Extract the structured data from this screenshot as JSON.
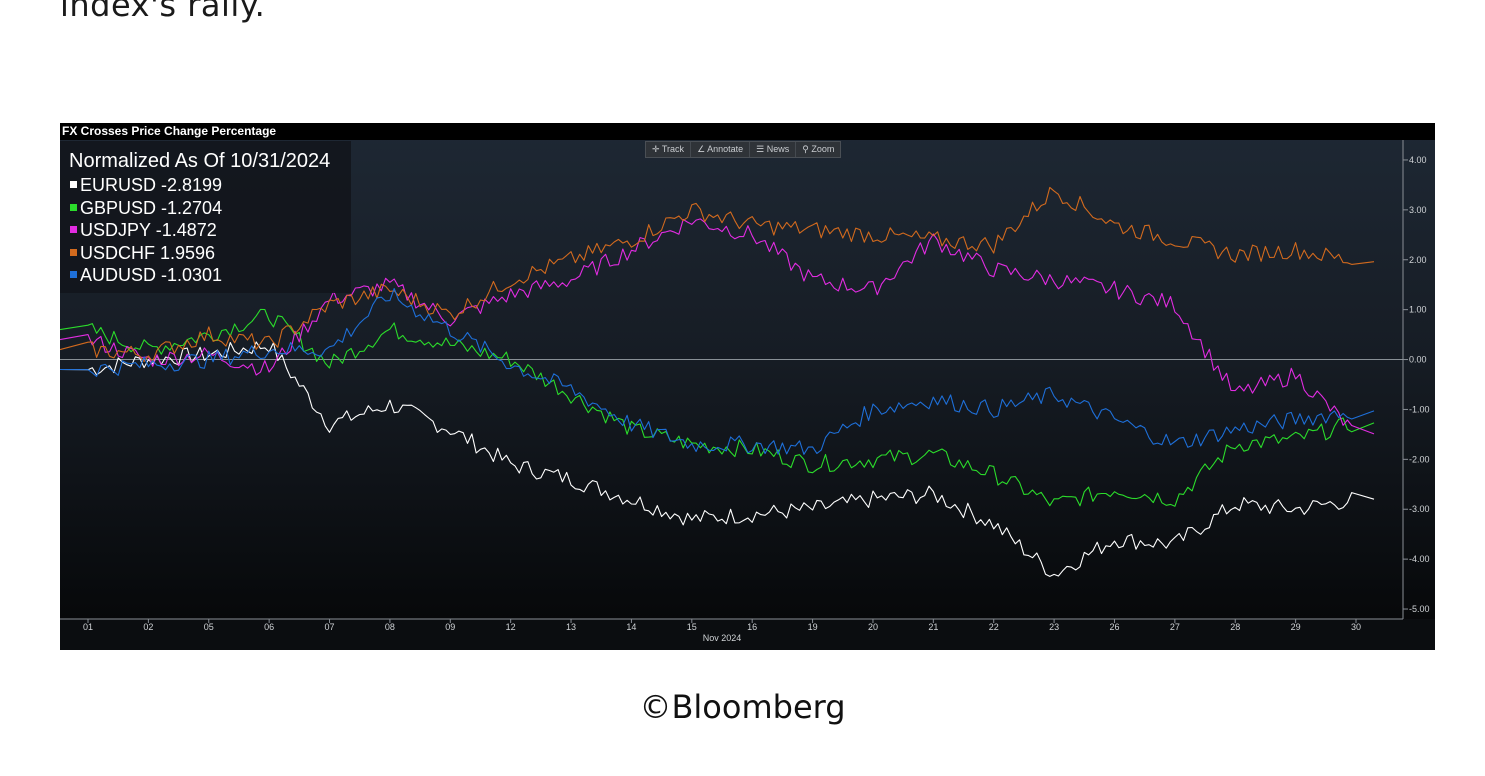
{
  "top_text": "index's rally.",
  "source": "©Bloomberg",
  "chart_data": {
    "type": "line",
    "title": "FX Crosses Price Change Percentage",
    "legend_title": "Normalized As Of 10/31/2024",
    "toolbar": [
      "Track",
      "Annotate",
      "News",
      "Zoom"
    ],
    "x_tick_labels": [
      "01",
      "02",
      "05",
      "06",
      "07",
      "08",
      "09",
      "12",
      "13",
      "14",
      "15",
      "16",
      "19",
      "20",
      "21",
      "22",
      "23",
      "26",
      "27",
      "28",
      "29",
      "30"
    ],
    "x_axis_label": "Nov 2024",
    "y_ticks": [
      4.0,
      3.0,
      2.0,
      1.0,
      0.0,
      -1.0,
      -2.0,
      -3.0,
      -4.0,
      -5.0
    ],
    "y_tick_labels": [
      "4.00",
      "3.00",
      "2.00",
      "1.00",
      "0.00",
      "-1.00",
      "-2.00",
      "-3.00",
      "-4.00",
      "-5.00"
    ],
    "ylim": [
      -5.2,
      4.4
    ],
    "y_axis_side": "right",
    "legend_position": "top-left",
    "series": [
      {
        "name": "EURUSD",
        "last": "-2.8199",
        "color": "#ffffff",
        "values": [
          -0.2,
          0.0,
          0.1,
          0.3,
          -1.3,
          -0.9,
          -1.4,
          -2.1,
          -2.4,
          -2.8,
          -3.2,
          -3.1,
          -3.0,
          -2.8,
          -2.7,
          -3.3,
          -4.3,
          -3.6,
          -3.7,
          -2.9,
          -3.0,
          -2.8
        ]
      },
      {
        "name": "GBPUSD",
        "last": "-1.2704",
        "color": "#2bdc2b",
        "values": [
          0.6,
          0.2,
          0.5,
          0.9,
          -0.1,
          0.6,
          0.3,
          0.0,
          -0.7,
          -1.4,
          -1.7,
          -1.8,
          -2.1,
          -2.0,
          -1.9,
          -2.3,
          -2.9,
          -2.6,
          -2.8,
          -1.7,
          -1.6,
          -1.27
        ]
      },
      {
        "name": "USDJPY",
        "last": "-1.4872",
        "color": "#e22ce2",
        "values": [
          0.4,
          0.0,
          0.1,
          -0.2,
          1.2,
          1.5,
          0.8,
          1.3,
          1.6,
          2.2,
          2.8,
          2.5,
          1.6,
          1.4,
          2.4,
          1.8,
          1.6,
          1.4,
          1.1,
          -0.7,
          -0.3,
          -1.49
        ]
      },
      {
        "name": "USDCHF",
        "last": "1.9596",
        "color": "#d26a1e",
        "values": [
          0.2,
          0.1,
          0.5,
          0.3,
          1.1,
          1.4,
          0.9,
          1.6,
          2.0,
          2.4,
          3.0,
          2.7,
          2.6,
          2.5,
          2.4,
          2.3,
          3.4,
          2.7,
          2.4,
          2.1,
          2.2,
          1.96
        ]
      },
      {
        "name": "AUDUSD",
        "last": "-1.0301",
        "color": "#1e6fd8",
        "values": [
          -0.2,
          -0.1,
          0.0,
          0.2,
          0.2,
          1.3,
          0.6,
          -0.1,
          -0.6,
          -1.3,
          -1.7,
          -1.7,
          -1.8,
          -1.0,
          -0.8,
          -1.0,
          -0.7,
          -1.2,
          -1.7,
          -1.4,
          -1.2,
          -1.03
        ]
      }
    ]
  }
}
